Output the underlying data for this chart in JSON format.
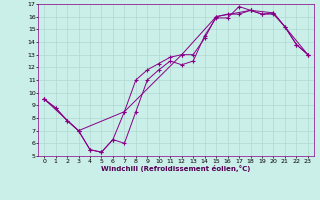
{
  "xlabel": "Windchill (Refroidissement éolien,°C)",
  "bg_color": "#caeee8",
  "line_color": "#880088",
  "xlim": [
    -0.5,
    23.5
  ],
  "ylim": [
    5,
    17
  ],
  "xticks": [
    0,
    1,
    2,
    3,
    4,
    5,
    6,
    7,
    8,
    9,
    10,
    11,
    12,
    13,
    14,
    15,
    16,
    17,
    18,
    19,
    20,
    21,
    22,
    23
  ],
  "yticks": [
    5,
    6,
    7,
    8,
    9,
    10,
    11,
    12,
    13,
    14,
    15,
    16,
    17
  ],
  "series1_x": [
    0,
    1,
    2,
    3,
    4,
    5,
    6,
    7,
    8,
    9,
    10,
    11,
    12,
    13,
    14,
    15,
    16,
    17,
    18,
    19,
    20,
    21,
    22,
    23
  ],
  "series1_y": [
    9.5,
    8.8,
    7.8,
    7.0,
    5.5,
    5.3,
    6.3,
    6.0,
    8.5,
    11.0,
    11.8,
    12.5,
    12.2,
    12.5,
    14.5,
    15.9,
    15.9,
    16.8,
    16.5,
    16.2,
    16.3,
    15.2,
    13.8,
    13.0
  ],
  "series2_x": [
    0,
    1,
    2,
    3,
    4,
    5,
    6,
    7,
    8,
    9,
    10,
    11,
    12,
    13,
    14,
    15,
    16,
    17,
    18,
    19,
    20,
    21,
    22,
    23
  ],
  "series2_y": [
    9.5,
    8.8,
    7.8,
    7.0,
    5.5,
    5.3,
    6.3,
    8.5,
    11.0,
    11.8,
    12.3,
    12.8,
    13.0,
    13.0,
    14.3,
    16.0,
    16.2,
    16.2,
    16.5,
    16.2,
    16.2,
    15.2,
    13.8,
    13.0
  ],
  "series3_x": [
    0,
    3,
    7,
    12,
    15,
    18,
    20,
    23
  ],
  "series3_y": [
    9.5,
    7.0,
    8.5,
    13.0,
    16.0,
    16.5,
    16.3,
    13.0
  ],
  "grid_color": "#b0d8d0",
  "marker": "+"
}
